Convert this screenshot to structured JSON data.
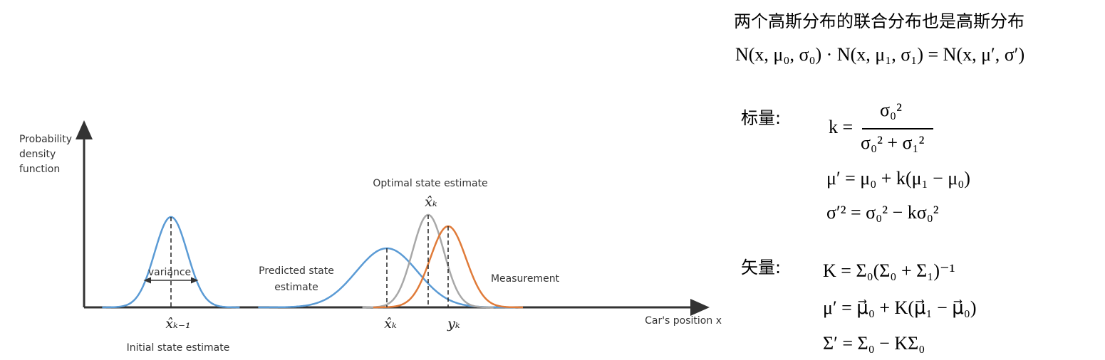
{
  "diagram": {
    "y_axis_label": [
      "Probability",
      "density",
      "function"
    ],
    "x_axis_label": "Car's position x",
    "variance_label": "variance",
    "initial": {
      "symbol": "x̂ₖ₋₁",
      "label": "Initial state estimate"
    },
    "predicted": {
      "symbol": "x̂ₖ",
      "label": [
        "Predicted state",
        "estimate"
      ]
    },
    "optimal": {
      "symbol": "x̂ₖ",
      "label": "Optimal state estimate"
    },
    "measurement": {
      "symbol": "yₖ",
      "label": "Measurement"
    }
  },
  "formulas": {
    "title": "两个高斯分布的联合分布也是高斯分布",
    "product": "N(x, μ₀, σ₀) · N(x, μ₁, σ₁) = N(x, μ′, σ′)",
    "scalar": {
      "heading": "标量:",
      "k_lhs": "k =",
      "k_numerator": "σ₀²",
      "k_denominator": "σ₀² + σ₁²",
      "mean": "μ′ = μ₀ + k(μ₁ − μ₀)",
      "variance": "σ′² = σ₀² − kσ₀²"
    },
    "vector": {
      "heading": "矢量:",
      "gain": "K = Σ₀(Σ₀ + Σ₁)⁻¹",
      "mean": "μ′ = μ⃗₀ + K(μ⃗₁ − μ⃗₀)",
      "covariance": "Σ′ = Σ₀ − KΣ₀"
    }
  }
}
